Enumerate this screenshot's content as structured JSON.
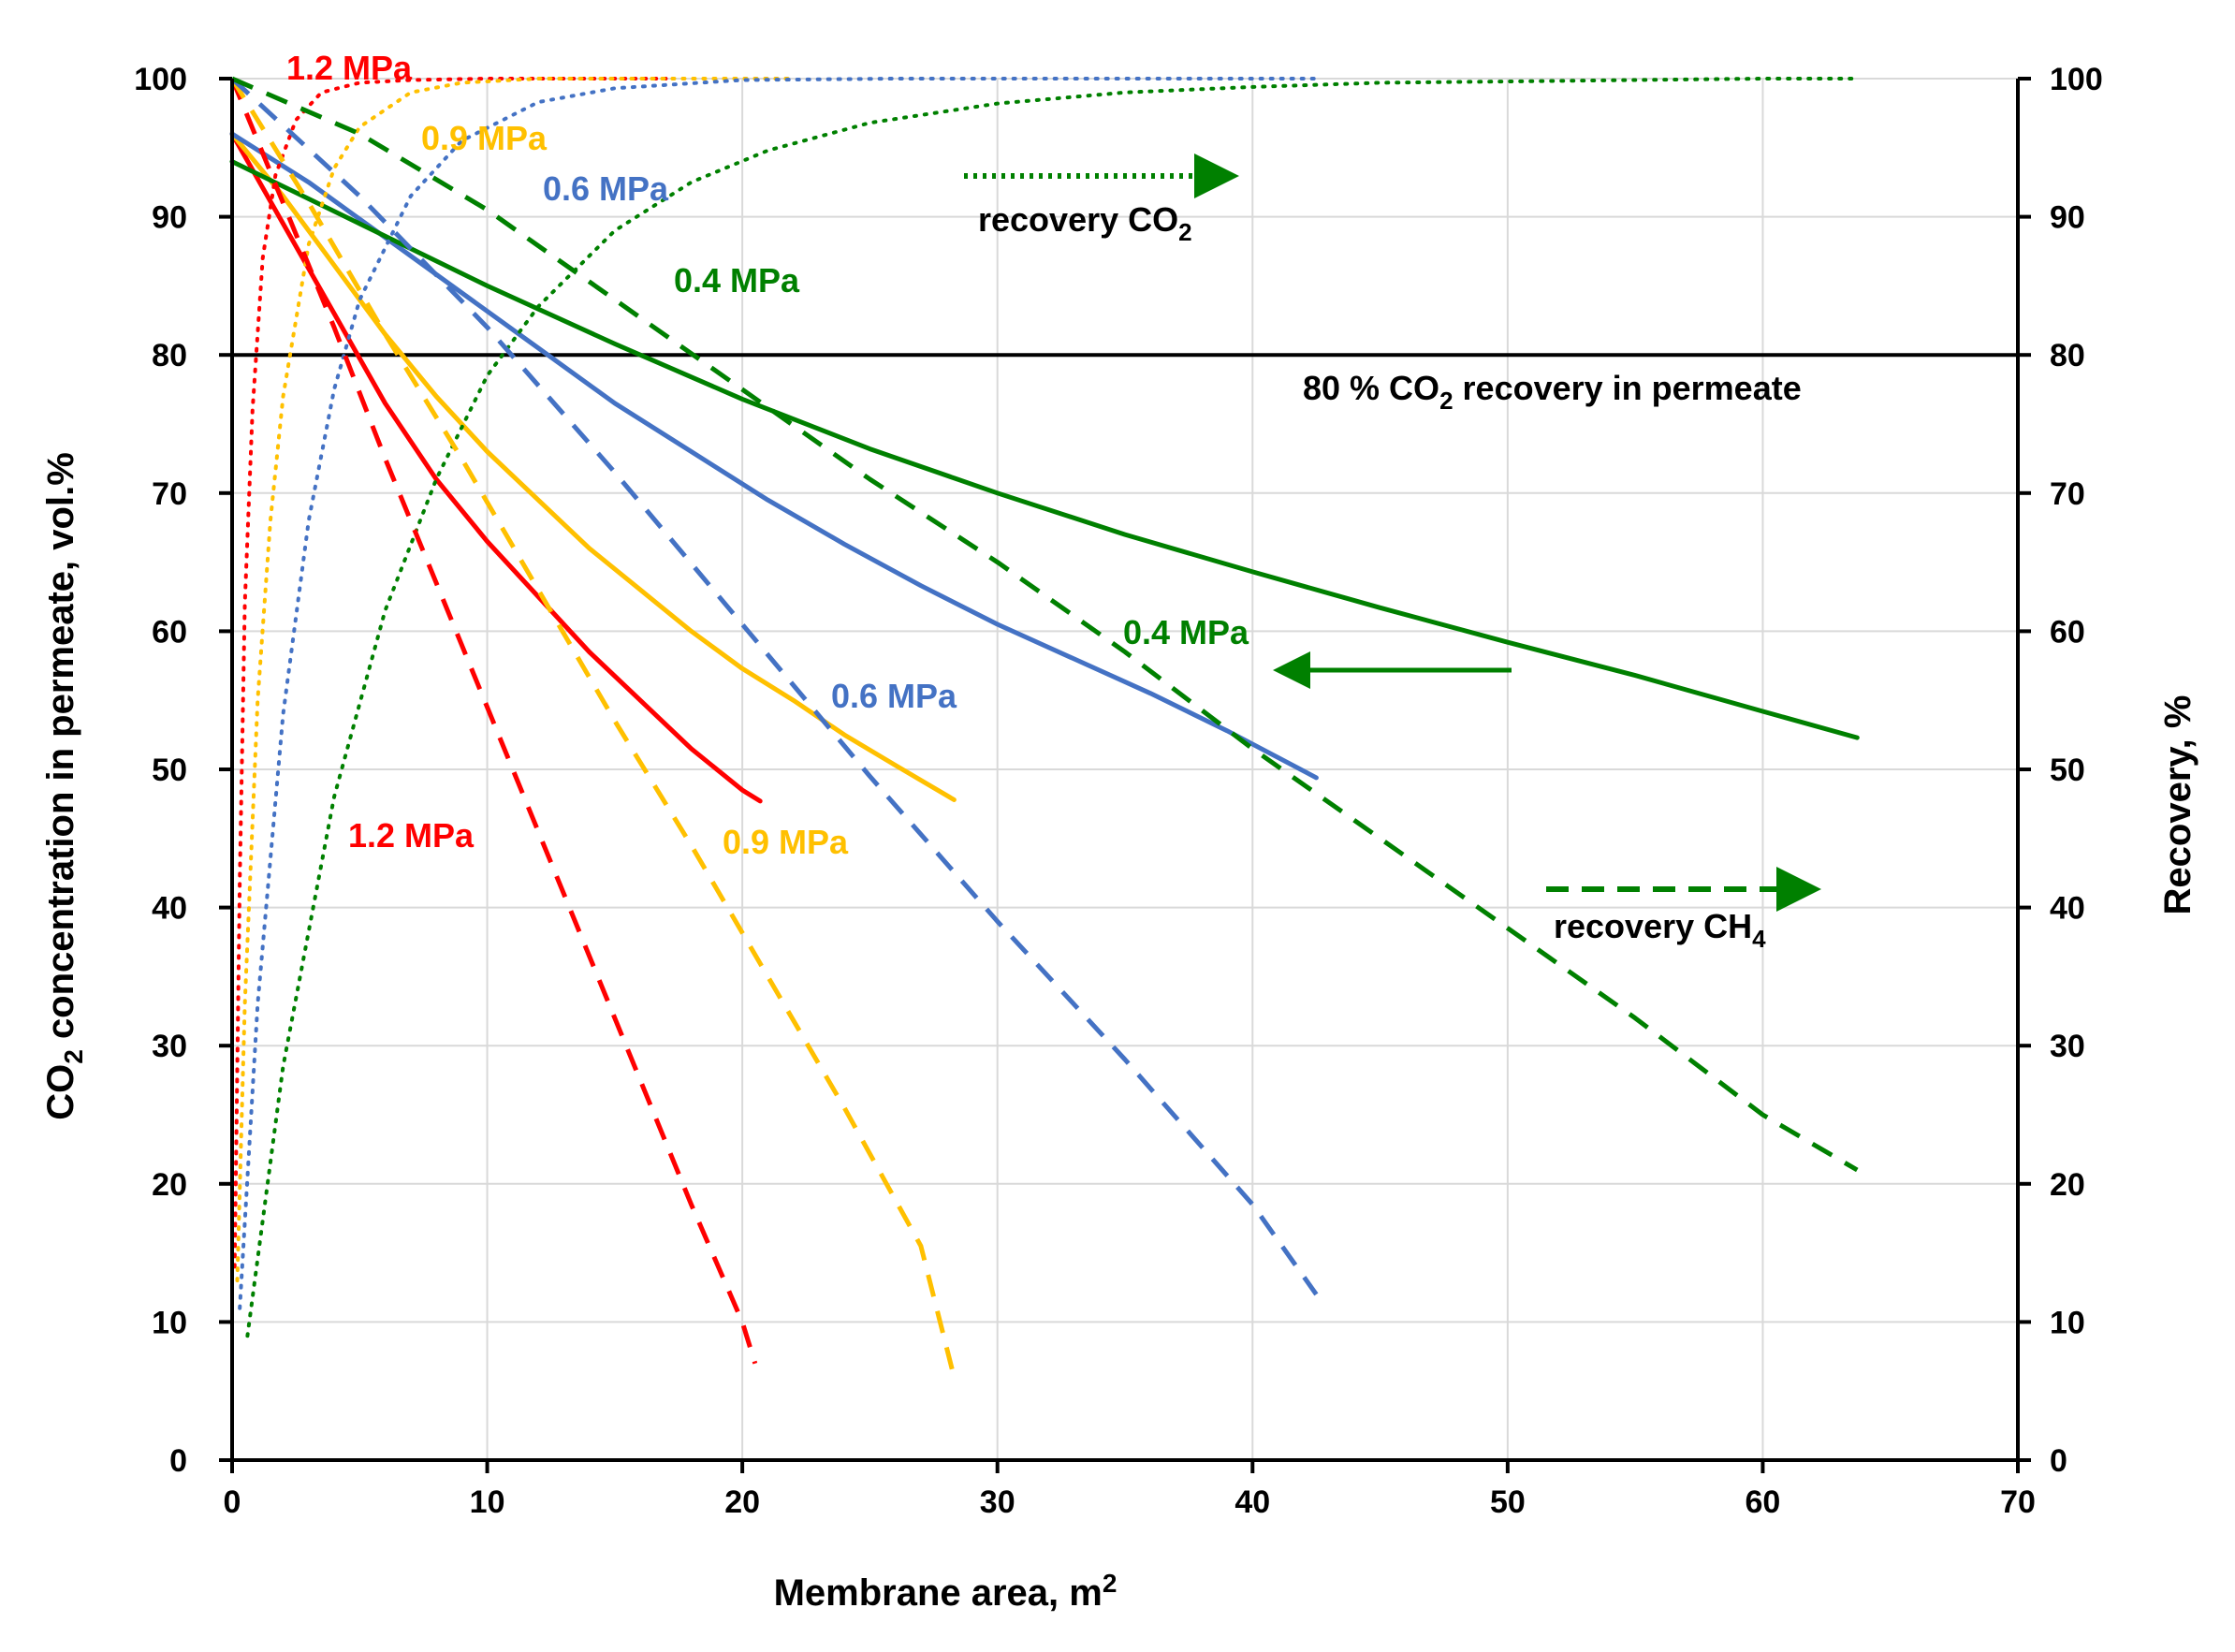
{
  "chart_data": {
    "type": "line",
    "title": "",
    "xlabel": "Membrane area, m",
    "xlabel_sup": "2",
    "ylabel_left_pre": "CO",
    "ylabel_left_sub": "2",
    "ylabel_left_post": " concentration in permeate, vol.%",
    "ylabel_right": "Recovery, %",
    "xlim": [
      0,
      70
    ],
    "ylim": [
      0,
      100
    ],
    "xticks": [
      "0",
      "10",
      "20",
      "30",
      "40",
      "50",
      "60",
      "70"
    ],
    "yticks": [
      "0",
      "10",
      "20",
      "30",
      "40",
      "50",
      "60",
      "70",
      "80",
      "90",
      "100"
    ],
    "grid": true,
    "reference_line": {
      "y": 80
    },
    "colors": {
      "p12": "#ff0000",
      "p09": "#ffc000",
      "p06": "#4472c4",
      "p04": "#008000",
      "axis": "#000000"
    },
    "series": [
      {
        "group": "concentration",
        "pressure": "1.2 MPa",
        "color": "#ff0000",
        "style": "solid",
        "x": [
          0,
          2,
          4,
          6,
          8,
          10,
          12,
          14,
          16,
          18,
          20,
          20.7
        ],
        "y": [
          96,
          89.5,
          83,
          76.5,
          71,
          66.5,
          62.5,
          58.5,
          55,
          51.5,
          48.5,
          47.7
        ]
      },
      {
        "group": "concentration",
        "pressure": "0.9 MPa",
        "color": "#ffc000",
        "style": "solid",
        "x": [
          0,
          2,
          4,
          6,
          8,
          10,
          12,
          14,
          16,
          18,
          20,
          22,
          24,
          26,
          28.3
        ],
        "y": [
          96,
          91.5,
          86.5,
          81.5,
          77,
          73,
          69.5,
          66,
          63,
          60,
          57.3,
          55,
          52.5,
          50.3,
          47.8
        ]
      },
      {
        "group": "concentration",
        "pressure": "0.6 MPa",
        "color": "#4472c4",
        "style": "solid",
        "x": [
          0,
          3,
          6,
          9,
          12,
          15,
          18,
          21,
          24,
          27,
          30,
          33,
          36,
          39,
          42.5
        ],
        "y": [
          96,
          92.5,
          88.5,
          84.5,
          80.5,
          76.5,
          73,
          69.5,
          66.3,
          63.3,
          60.5,
          58,
          55.5,
          52.8,
          49.4
        ]
      },
      {
        "group": "concentration",
        "pressure": "0.4 MPa",
        "color": "#008000",
        "style": "solid",
        "x": [
          0,
          5,
          10,
          15,
          20,
          25,
          30,
          35,
          40,
          45,
          50,
          55,
          60,
          63.7
        ],
        "y": [
          94,
          89.5,
          85,
          80.8,
          76.8,
          73.2,
          70,
          67,
          64.3,
          61.7,
          59.2,
          56.8,
          54.2,
          52.3
        ]
      },
      {
        "group": "recovery CO2",
        "pressure": "1.2 MPa",
        "color": "#ff0000",
        "style": "dotted",
        "x": [
          0.1,
          0.3,
          0.5,
          0.8,
          1.2,
          1.7,
          2.5,
          3.5,
          5,
          7,
          10,
          14,
          17
        ],
        "y": [
          14,
          42,
          62,
          76,
          87,
          93,
          97,
          99,
          99.7,
          99.9,
          100,
          100,
          100
        ]
      },
      {
        "group": "recovery CO2",
        "pressure": "0.9 MPa",
        "color": "#ffc000",
        "style": "dotted",
        "x": [
          0.2,
          0.5,
          1,
          1.5,
          2,
          3,
          4,
          5,
          7,
          9,
          12,
          16,
          22
        ],
        "y": [
          13,
          33,
          55,
          68,
          77,
          88,
          93.5,
          96.5,
          99,
          99.7,
          100,
          100,
          100
        ]
      },
      {
        "group": "recovery CO2",
        "pressure": "0.6 MPa",
        "color": "#4472c4",
        "style": "dotted",
        "x": [
          0.3,
          1,
          2,
          3,
          4,
          5,
          7,
          9,
          12,
          15,
          20,
          26,
          33,
          42.5
        ],
        "y": [
          11,
          33,
          54,
          68,
          77.5,
          84,
          91.5,
          95.5,
          98.3,
          99.3,
          99.9,
          100,
          100,
          100
        ]
      },
      {
        "group": "recovery CO2",
        "pressure": "0.4 MPa",
        "color": "#008000",
        "style": "dotted",
        "x": [
          0.6,
          2,
          4,
          6,
          8,
          10,
          12,
          15,
          18,
          21,
          25,
          30,
          35,
          40,
          45,
          50,
          55,
          60,
          63.7
        ],
        "y": [
          9,
          28.5,
          48,
          61.5,
          71,
          78.5,
          83.5,
          89,
          92.5,
          94.8,
          96.8,
          98.2,
          99,
          99.4,
          99.7,
          99.8,
          99.9,
          100,
          100
        ]
      },
      {
        "group": "recovery CH4",
        "pressure": "1.2 MPa",
        "color": "#ff0000",
        "style": "dashed",
        "x": [
          0,
          2,
          4,
          6,
          8,
          10,
          12,
          14,
          16,
          18,
          20,
          20.5
        ],
        "y": [
          100,
          91,
          82,
          72.5,
          63.5,
          54.5,
          45.5,
          36.5,
          27.5,
          18.5,
          10,
          7
        ]
      },
      {
        "group": "recovery CH4",
        "pressure": "0.9 MPa",
        "color": "#ffc000",
        "style": "dashed",
        "x": [
          0,
          3,
          6,
          9,
          12,
          15,
          18,
          21,
          24,
          27,
          28.3
        ],
        "y": [
          100,
          91,
          81.5,
          72.5,
          63,
          53.5,
          44.5,
          35,
          25.5,
          15.5,
          6
        ]
      },
      {
        "group": "recovery CH4",
        "pressure": "0.6 MPa",
        "color": "#4472c4",
        "style": "dashed",
        "x": [
          0,
          5,
          10,
          15,
          20,
          25,
          30,
          35,
          40,
          42.5
        ],
        "y": [
          100,
          91.5,
          82,
          71.5,
          60.5,
          49.5,
          39,
          29,
          18.5,
          12
        ]
      },
      {
        "group": "recovery CH4",
        "pressure": "0.4 MPa",
        "color": "#008000",
        "style": "dashed",
        "x": [
          0,
          5,
          10,
          15,
          20,
          25,
          30,
          35,
          40,
          45,
          50,
          55,
          60,
          63.7
        ],
        "y": [
          100,
          96,
          90.5,
          84,
          77.5,
          71,
          65,
          58.5,
          51.5,
          45,
          38.5,
          32,
          25,
          21
        ]
      }
    ],
    "annotations": {
      "p12_top": "1.2 MPa",
      "p09_top": "0.9 MPa",
      "p06_top": "0.6 MPa",
      "p04_top": "0.4 MPa",
      "p04_mid": "0.4 MPa",
      "p06_mid": "0.6 MPa",
      "p12_bottom": "1.2 MPa",
      "p09_bottom": "0.9 MPa",
      "recovery_co2_pre": "recovery CO",
      "recovery_co2_sub": "2",
      "recovery_ch4_pre": "recovery CH",
      "recovery_ch4_sub": "4",
      "ref_pre": "80 % CO",
      "ref_sub": "2",
      "ref_post": " recovery in permeate"
    }
  }
}
